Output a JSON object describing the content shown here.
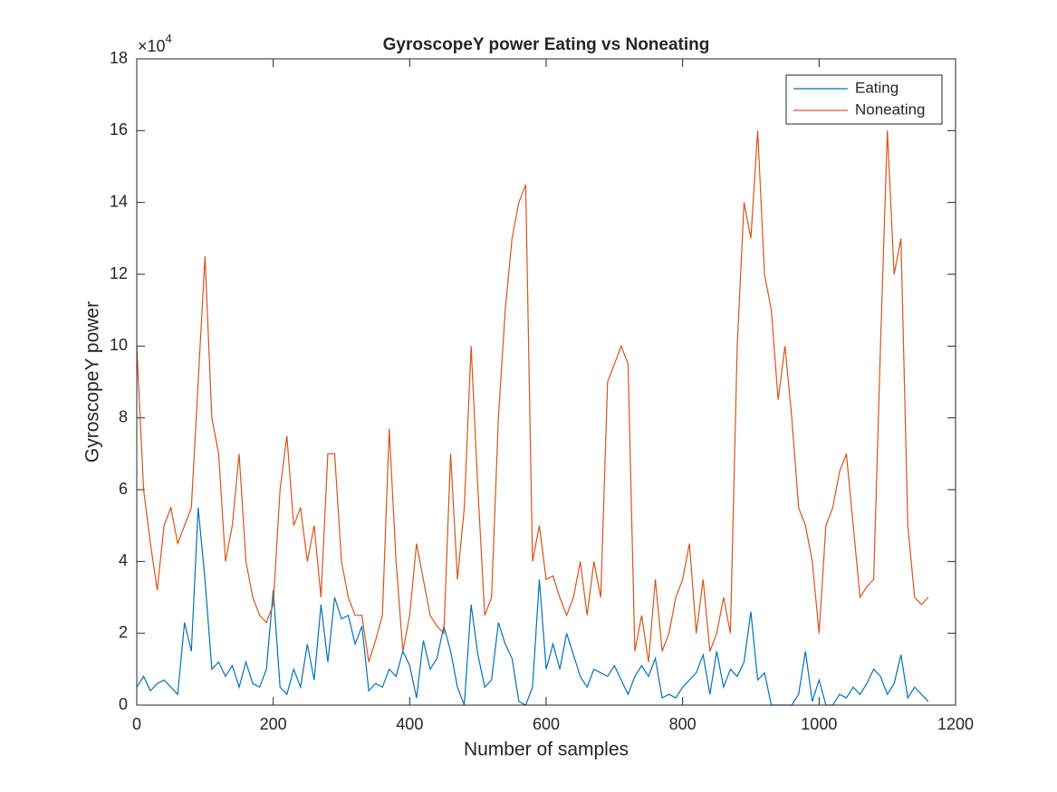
{
  "chart_data": {
    "type": "line",
    "title": "GyroscopeY power Eating vs Noneating",
    "x_label": "Number of samples",
    "y_label": "GyroscopeY power",
    "y_multiplier": {
      "base": "×10",
      "exponent": "4"
    },
    "x": [
      0,
      10,
      20,
      30,
      40,
      50,
      60,
      70,
      80,
      90,
      100,
      110,
      120,
      130,
      140,
      150,
      160,
      170,
      180,
      190,
      200,
      210,
      220,
      230,
      240,
      250,
      260,
      270,
      280,
      290,
      300,
      310,
      320,
      330,
      340,
      350,
      360,
      370,
      380,
      390,
      400,
      410,
      420,
      430,
      440,
      450,
      460,
      470,
      480,
      490,
      500,
      510,
      520,
      530,
      540,
      550,
      560,
      570,
      580,
      590,
      600,
      610,
      620,
      630,
      640,
      650,
      660,
      670,
      680,
      690,
      700,
      710,
      720,
      730,
      740,
      750,
      760,
      770,
      780,
      790,
      800,
      810,
      820,
      830,
      840,
      850,
      860,
      870,
      880,
      890,
      900,
      910,
      920,
      930,
      940,
      950,
      960,
      970,
      980,
      990,
      1000,
      1010,
      1020,
      1030,
      1040,
      1050,
      1060,
      1070,
      1080,
      1090,
      1100,
      1110,
      1120,
      1130,
      1140,
      1150,
      1160
    ],
    "series": [
      {
        "name": "Eating",
        "color": "#0072BD",
        "values": [
          5000,
          8000,
          4000,
          6000,
          7000,
          5000,
          3000,
          23000,
          15000,
          55000,
          35000,
          10000,
          12000,
          8000,
          11000,
          5000,
          12000,
          6000,
          5000,
          10000,
          32000,
          5000,
          3000,
          10000,
          5000,
          17000,
          7000,
          28000,
          12000,
          30000,
          24000,
          25000,
          17000,
          22000,
          4000,
          6000,
          5000,
          10000,
          8000,
          15000,
          11000,
          2000,
          18000,
          10000,
          13000,
          22000,
          15000,
          5000,
          0,
          28000,
          14000,
          5000,
          7000,
          23000,
          17000,
          13000,
          1000,
          0,
          5000,
          35000,
          10000,
          17000,
          10000,
          20000,
          14000,
          8000,
          5000,
          10000,
          9000,
          8000,
          11000,
          7000,
          3000,
          8000,
          11000,
          8000,
          13000,
          2000,
          3000,
          2000,
          5000,
          7000,
          9000,
          14000,
          3000,
          15000,
          5000,
          10000,
          8000,
          12000,
          26000,
          7000,
          9000,
          0,
          0,
          0,
          0,
          3000,
          15000,
          1000,
          7000,
          0,
          0,
          3000,
          2000,
          5000,
          3000,
          6000,
          10000,
          8000,
          3000,
          6000,
          14000,
          2000,
          5000,
          3000,
          1000
        ]
      },
      {
        "name": "Noneating",
        "color": "#D95319",
        "values": [
          100000,
          60000,
          45000,
          32000,
          50000,
          55000,
          45000,
          50000,
          55000,
          90000,
          125000,
          80000,
          70000,
          40000,
          50000,
          70000,
          40000,
          30000,
          25000,
          23000,
          28000,
          60000,
          75000,
          50000,
          55000,
          40000,
          50000,
          30000,
          70000,
          70000,
          40000,
          30000,
          25000,
          25000,
          12000,
          18000,
          25000,
          77000,
          40000,
          15000,
          25000,
          45000,
          35000,
          25000,
          22000,
          20000,
          70000,
          35000,
          55000,
          100000,
          60000,
          25000,
          30000,
          80000,
          110000,
          130000,
          140000,
          145000,
          40000,
          50000,
          35000,
          36000,
          30000,
          25000,
          30000,
          40000,
          25000,
          40000,
          30000,
          90000,
          95000,
          100000,
          95000,
          15000,
          25000,
          12000,
          35000,
          15000,
          20000,
          30000,
          35000,
          45000,
          20000,
          35000,
          15000,
          20000,
          30000,
          20000,
          100000,
          140000,
          130000,
          160000,
          120000,
          110000,
          85000,
          100000,
          80000,
          55000,
          50000,
          40000,
          20000,
          50000,
          55000,
          65000,
          70000,
          50000,
          30000,
          33000,
          35000,
          100000,
          160000,
          120000,
          130000,
          50000,
          30000,
          28000,
          30000
        ]
      }
    ],
    "xlim": [
      0,
      1200
    ],
    "xticks": [
      0,
      200,
      400,
      600,
      800,
      1000,
      1200
    ],
    "ylim": [
      0,
      180000
    ],
    "yticks": [
      {
        "value": 0,
        "label": "0"
      },
      {
        "value": 20000,
        "label": "2"
      },
      {
        "value": 40000,
        "label": "4"
      },
      {
        "value": 60000,
        "label": "6"
      },
      {
        "value": 80000,
        "label": "8"
      },
      {
        "value": 100000,
        "label": "10"
      },
      {
        "value": 120000,
        "label": "12"
      },
      {
        "value": 140000,
        "label": "14"
      },
      {
        "value": 160000,
        "label": "16"
      },
      {
        "value": 180000,
        "label": "18"
      }
    ],
    "grid": false,
    "legend": "top-right"
  }
}
